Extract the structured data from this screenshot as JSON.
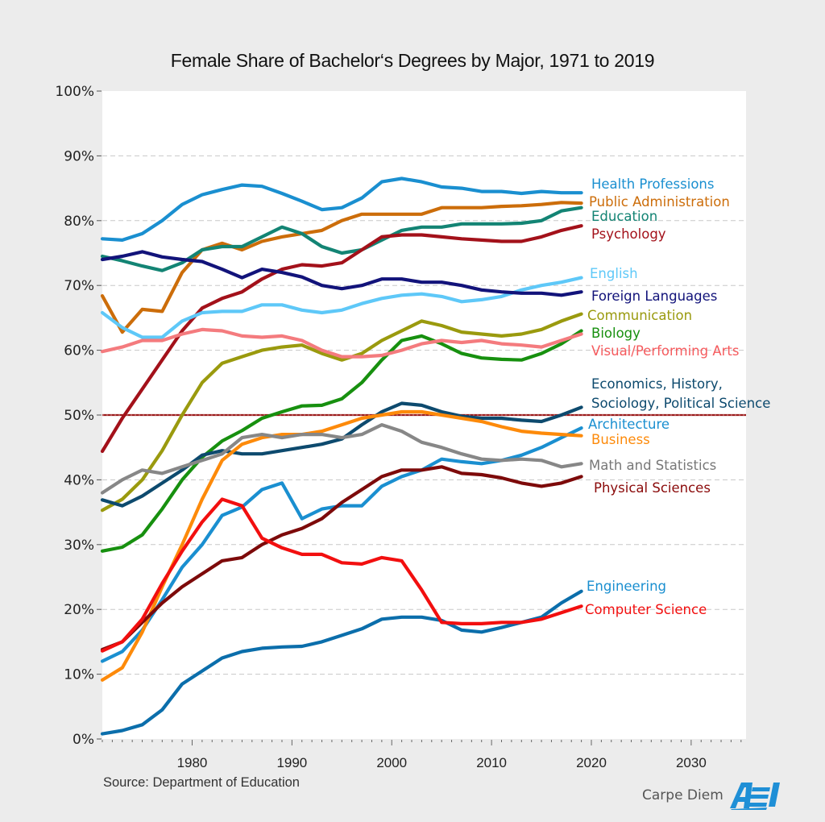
{
  "page": {
    "source": "Source: Department of Education",
    "brand_text": "Carpe Diem",
    "logo_text": "AEI",
    "colors": {
      "background": "#ececec",
      "plot_background": "#ffffff",
      "grid": "#c8c8c8",
      "reference_line": "#9b1b1b",
      "logo": "#1f8fd6"
    }
  },
  "chart_data": {
    "type": "line",
    "title": "Female Share of Bachelor‘s Degrees by Major, 1971 to 2019",
    "xlabel": "",
    "ylabel": "",
    "xlim": [
      1971,
      2035.5
    ],
    "ylim": [
      0,
      100
    ],
    "x_ticks": [
      1980,
      1990,
      2000,
      2010,
      2020,
      2030
    ],
    "y_ticks": [
      0,
      10,
      20,
      30,
      40,
      50,
      60,
      70,
      80,
      90,
      100
    ],
    "y_tick_labels": [
      "0%",
      "10%",
      "20%",
      "30%",
      "40%",
      "50%",
      "60%",
      "70%",
      "80%",
      "90%",
      "100%"
    ],
    "grid": "horizontal dashed",
    "legend": "inline labels at right end of lines",
    "reference_line": {
      "y": 50,
      "color": "#9b1b1b"
    },
    "x_start": 1971,
    "x_step": 2,
    "series": [
      {
        "name": "Health Professions",
        "color": "#1a8fd0",
        "values": [
          77.2,
          77.0,
          78.0,
          80.0,
          82.5,
          84.0,
          84.8,
          85.5,
          85.3,
          84.2,
          83.0,
          81.7,
          82.0,
          83.5,
          86.0,
          86.5,
          86.0,
          85.2,
          85.0,
          84.5,
          84.5,
          84.2,
          84.5,
          84.3,
          84.3
        ]
      },
      {
        "name": "Public Administration",
        "color": "#cc6d0a",
        "values": [
          68.4,
          62.8,
          66.3,
          66.0,
          72.0,
          75.5,
          76.5,
          75.5,
          76.8,
          77.5,
          78.0,
          78.5,
          80.0,
          81.0,
          81.0,
          81.0,
          81.0,
          82.0,
          82.0,
          82.0,
          82.2,
          82.3,
          82.5,
          82.8,
          82.7
        ]
      },
      {
        "name": "Education",
        "color": "#138474",
        "values": [
          74.5,
          73.8,
          73.0,
          72.3,
          73.5,
          75.5,
          76.0,
          76.0,
          77.5,
          79.0,
          78.0,
          76.0,
          75.0,
          75.5,
          77.0,
          78.5,
          79.0,
          79.0,
          79.5,
          79.5,
          79.5,
          79.6,
          80.0,
          81.5,
          82.0
        ]
      },
      {
        "name": "Psychology",
        "color": "#a3111a",
        "values": [
          44.4,
          49.5,
          54.0,
          58.5,
          63.0,
          66.5,
          68.0,
          69.0,
          71.0,
          72.5,
          73.2,
          73.0,
          73.5,
          75.5,
          77.5,
          77.8,
          77.8,
          77.5,
          77.2,
          77.0,
          76.8,
          76.8,
          77.5,
          78.5,
          79.2
        ]
      },
      {
        "name": "English",
        "color": "#5ec8f8",
        "values": [
          65.8,
          63.5,
          62.0,
          62.0,
          64.5,
          65.8,
          66.0,
          66.0,
          67.0,
          67.0,
          66.2,
          65.8,
          66.2,
          67.2,
          68.0,
          68.5,
          68.7,
          68.3,
          67.5,
          67.8,
          68.3,
          69.3,
          70.0,
          70.5,
          71.2
        ]
      },
      {
        "name": "Foreign Languages",
        "color": "#12137a",
        "values": [
          74.0,
          74.5,
          75.2,
          74.4,
          74.0,
          73.7,
          72.5,
          71.2,
          72.5,
          72.0,
          71.3,
          70.0,
          69.5,
          70.0,
          71.0,
          71.0,
          70.5,
          70.5,
          70.0,
          69.3,
          69.0,
          68.8,
          68.8,
          68.5,
          69.0
        ]
      },
      {
        "name": "Communication",
        "color": "#9a9a0e",
        "values": [
          35.3,
          37.0,
          40.0,
          44.5,
          50.0,
          55.0,
          58.0,
          59.0,
          60.0,
          60.5,
          60.8,
          59.5,
          58.5,
          59.5,
          61.5,
          63.0,
          64.5,
          63.8,
          62.8,
          62.5,
          62.2,
          62.5,
          63.2,
          64.5,
          65.6
        ]
      },
      {
        "name": "Biology",
        "color": "#17900f",
        "values": [
          29.0,
          29.6,
          31.5,
          35.5,
          40.0,
          43.5,
          46.0,
          47.6,
          49.5,
          50.5,
          51.4,
          51.5,
          52.5,
          55.0,
          58.5,
          61.5,
          62.2,
          61.0,
          59.5,
          58.8,
          58.6,
          58.5,
          59.5,
          61.0,
          63.0
        ]
      },
      {
        "name": "Visual/Performing Arts",
        "color": "#f47b7e",
        "values": [
          59.8,
          60.5,
          61.5,
          61.5,
          62.5,
          63.2,
          63.0,
          62.2,
          62.0,
          62.2,
          61.5,
          60.0,
          59.0,
          59.0,
          59.2,
          60.0,
          61.0,
          61.5,
          61.2,
          61.5,
          61.0,
          60.8,
          60.5,
          61.5,
          62.5
        ]
      },
      {
        "name": "Economics, History, Sociology, Political Science",
        "color": "#0d4a6e",
        "values": [
          36.9,
          36.0,
          37.5,
          39.5,
          41.5,
          43.8,
          44.5,
          44.0,
          44.0,
          44.5,
          45.0,
          45.5,
          46.3,
          48.5,
          50.5,
          51.8,
          51.5,
          50.5,
          49.8,
          49.5,
          49.5,
          49.2,
          49.0,
          50.0,
          51.2
        ]
      },
      {
        "name": "Architecture",
        "color": "#1a8fd0",
        "values": [
          12.0,
          13.5,
          16.8,
          21.5,
          26.5,
          30.0,
          34.5,
          35.8,
          38.5,
          39.5,
          34.0,
          35.5,
          36.0,
          36.0,
          39.0,
          40.5,
          41.5,
          43.2,
          42.8,
          42.5,
          43.0,
          43.8,
          45.0,
          46.5,
          48.0
        ]
      },
      {
        "name": "Business",
        "color": "#fd8a0a",
        "values": [
          9.1,
          11.0,
          16.5,
          23.5,
          30.0,
          37.0,
          43.0,
          45.5,
          46.5,
          47.0,
          47.0,
          47.5,
          48.5,
          49.5,
          50.0,
          50.5,
          50.5,
          50.0,
          49.5,
          49.0,
          48.2,
          47.5,
          47.2,
          47.0,
          46.8
        ]
      },
      {
        "name": "Math and Statistics",
        "color": "#878787",
        "values": [
          38.0,
          40.0,
          41.5,
          41.0,
          42.0,
          43.0,
          44.0,
          46.5,
          47.0,
          46.5,
          47.0,
          47.0,
          46.5,
          47.0,
          48.5,
          47.5,
          45.8,
          45.0,
          44.0,
          43.2,
          43.0,
          43.2,
          43.0,
          42.0,
          42.5
        ]
      },
      {
        "name": "Physical Sciences",
        "color": "#7d0a0a",
        "values": [
          13.8,
          15.0,
          18.0,
          21.0,
          23.5,
          25.5,
          27.5,
          28.0,
          30.0,
          31.5,
          32.5,
          34.0,
          36.5,
          38.5,
          40.5,
          41.5,
          41.5,
          42.0,
          41.0,
          40.8,
          40.3,
          39.5,
          39.0,
          39.5,
          40.5
        ]
      },
      {
        "name": "Engineering",
        "color": "#0b6eab",
        "values": [
          0.8,
          1.3,
          2.2,
          4.5,
          8.5,
          10.5,
          12.5,
          13.5,
          14.0,
          14.2,
          14.3,
          15.0,
          16.0,
          17.0,
          18.5,
          18.8,
          18.8,
          18.3,
          16.8,
          16.5,
          17.2,
          18.0,
          18.8,
          21.0,
          22.8
        ]
      },
      {
        "name": "Computer Science",
        "color": "#f20f0f",
        "values": [
          13.6,
          15.0,
          18.5,
          24.0,
          29.0,
          33.5,
          37.0,
          36.0,
          31.0,
          29.5,
          28.5,
          28.5,
          27.2,
          27.0,
          28.0,
          27.5,
          23.0,
          18.0,
          17.8,
          17.8,
          18.0,
          18.0,
          18.5,
          19.5,
          20.5
        ]
      }
    ],
    "labels": [
      {
        "series": "Health Professions",
        "lines": [
          "Health Professions"
        ],
        "color": "#1a8fd0"
      },
      {
        "series": "Public Administration",
        "lines": [
          "Public Administration"
        ],
        "color": "#cc6d0a"
      },
      {
        "series": "Education",
        "lines": [
          "Education"
        ],
        "color": "#138474"
      },
      {
        "series": "Psychology",
        "lines": [
          "Psychology"
        ],
        "color": "#a3111a"
      },
      {
        "series": "English",
        "lines": [
          "English"
        ],
        "color": "#5ec8f8"
      },
      {
        "series": "Foreign Languages",
        "lines": [
          "Foreign Languages"
        ],
        "color": "#12137a"
      },
      {
        "series": "Communication",
        "lines": [
          "Communication"
        ],
        "color": "#9a9a0e"
      },
      {
        "series": "Biology",
        "lines": [
          "Biology"
        ],
        "color": "#17900f"
      },
      {
        "series": "Visual/Performing Arts",
        "lines": [
          "Visual/Performing Arts"
        ],
        "color": "#f55b5e"
      },
      {
        "series": "Economics, History, Sociology, Political Science",
        "lines": [
          "Economics, History,",
          "Sociology, Political Science"
        ],
        "color": "#0d4a6e"
      },
      {
        "series": "Architecture",
        "lines": [
          "Architecture"
        ],
        "color": "#1a8fd0"
      },
      {
        "series": "Business",
        "lines": [
          "Business"
        ],
        "color": "#fd8a0a"
      },
      {
        "series": "Math and Statistics",
        "lines": [
          "Math and Statistics"
        ],
        "color": "#777777"
      },
      {
        "series": "Physical Sciences",
        "lines": [
          "Physical Sciences"
        ],
        "color": "#8a0a0a"
      },
      {
        "series": "Engineering",
        "lines": [
          "Engineering"
        ],
        "color": "#1a8fd0"
      },
      {
        "series": "Computer Science",
        "lines": [
          "Computer Science"
        ],
        "color": "#f20f0f"
      }
    ]
  }
}
